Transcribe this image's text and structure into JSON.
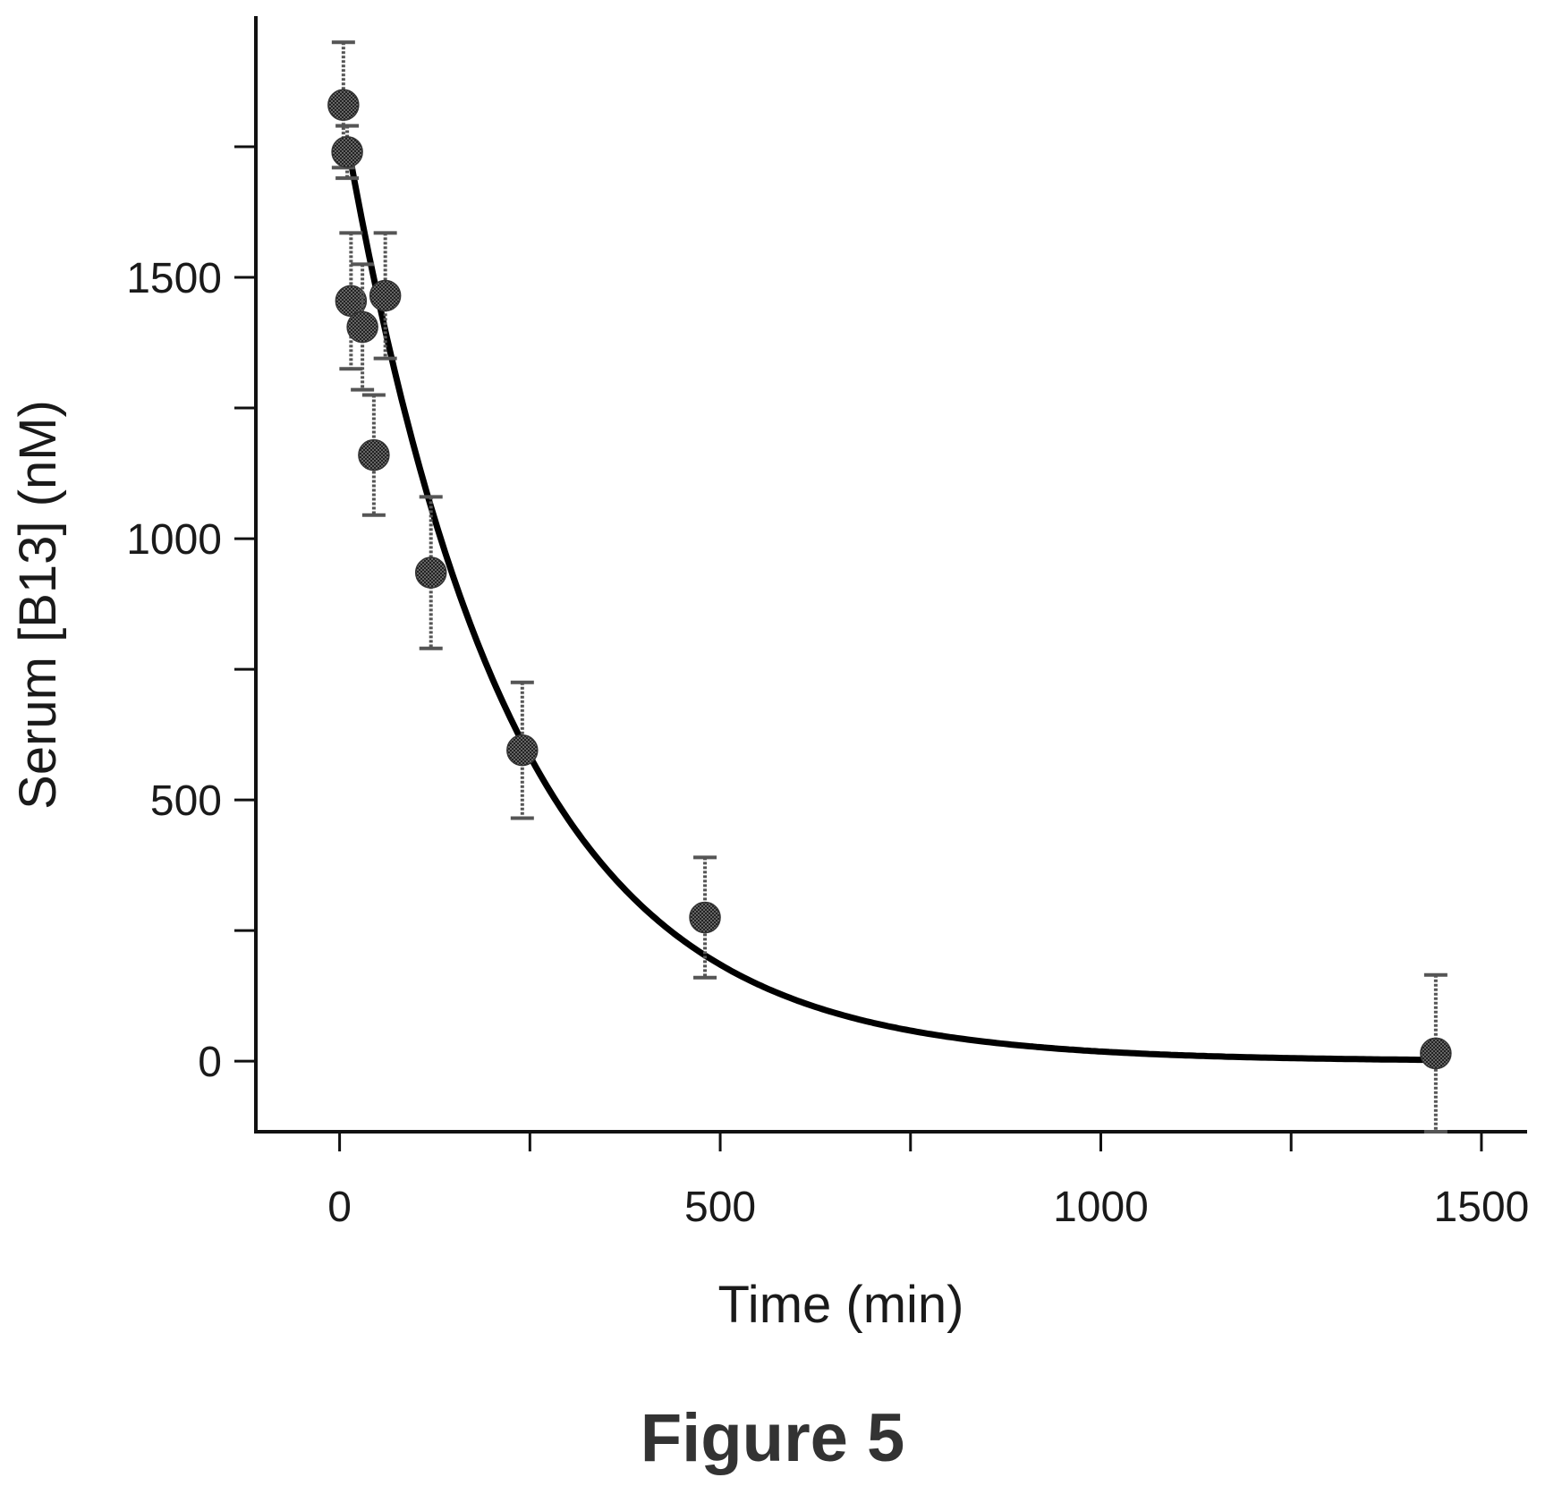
{
  "caption": "Figure 5",
  "chart_data": {
    "type": "scatter",
    "title": "",
    "xlabel": "Time (min)",
    "ylabel": "Serum [B13] (nM)",
    "xlim": [
      -110,
      1560
    ],
    "ylim": [
      -135,
      2000
    ],
    "x_ticks_major": [
      0,
      500,
      1000,
      1500
    ],
    "x_ticks_minor": [
      250,
      750,
      1250
    ],
    "y_ticks_major": [
      0,
      500,
      1000,
      1500
    ],
    "y_ticks_minor": [
      250,
      750,
      1250,
      1750
    ],
    "grid": false,
    "legend": "none",
    "colors": {
      "axis": "#111111",
      "marker": "#444444",
      "error_bar": "#555555",
      "fit_line": "#000000"
    },
    "series": [
      {
        "values": [
          {
            "x": 5,
            "y": 1830,
            "err": 120
          },
          {
            "x": 10,
            "y": 1740,
            "err": 50
          },
          {
            "x": 15,
            "y": 1455,
            "err": 130
          },
          {
            "x": 30,
            "y": 1405,
            "err": 120
          },
          {
            "x": 45,
            "y": 1160,
            "err": 115
          },
          {
            "x": 60,
            "y": 1465,
            "err": 120
          },
          {
            "x": 120,
            "y": 935,
            "err": 145
          },
          {
            "x": 240,
            "y": 595,
            "err": 130
          },
          {
            "x": 480,
            "y": 275,
            "err": 115
          },
          {
            "x": 1440,
            "y": 15,
            "err": 150
          }
        ]
      }
    ],
    "fit": {
      "model": "one-phase exponential decay",
      "y0": 1760,
      "plateau": 0,
      "k": 0.0046,
      "x_start": 10,
      "x_end": 1440
    }
  }
}
